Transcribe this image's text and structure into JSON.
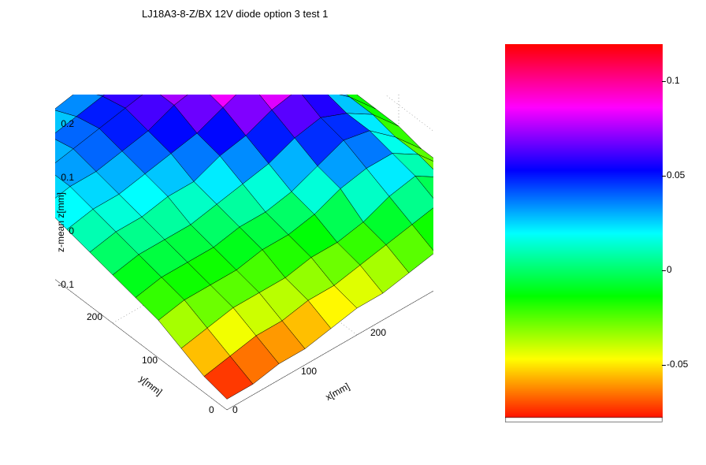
{
  "title": "LJ18A3-8-Z/BX 12V diode option 3 test 1",
  "axes": {
    "x": {
      "label": "x[mm]",
      "min": 0,
      "max": 220,
      "ticks": [
        0,
        100,
        200
      ]
    },
    "y": {
      "label": "y[mm]",
      "min": 0,
      "max": 220,
      "ticks": [
        0,
        100,
        200
      ]
    },
    "z": {
      "label": "z-mean z[mm]",
      "min": -0.1,
      "max": 0.2,
      "ticks": [
        -0.1,
        0,
        0.1,
        0.2
      ]
    }
  },
  "surface": {
    "nx": 12,
    "ny": 12,
    "xstep": 20,
    "ystep": 20,
    "z": [
      [
        -0.08,
        -0.08,
        -0.07,
        -0.07,
        -0.06,
        -0.05,
        -0.05,
        -0.04,
        -0.03,
        -0.02,
        -0.04,
        -0.07
      ],
      [
        -0.07,
        -0.06,
        -0.05,
        -0.05,
        -0.04,
        -0.04,
        -0.03,
        -0.02,
        -0.01,
        0.0,
        -0.02,
        -0.06
      ],
      [
        -0.05,
        -0.04,
        -0.03,
        -0.03,
        -0.03,
        -0.02,
        -0.02,
        -0.01,
        0.01,
        0.02,
        -0.01,
        -0.05
      ],
      [
        -0.03,
        -0.02,
        -0.02,
        -0.02,
        -0.01,
        -0.01,
        0.0,
        0.02,
        0.03,
        0.03,
        0.0,
        -0.05
      ],
      [
        -0.02,
        -0.01,
        -0.01,
        -0.01,
        0.0,
        0.0,
        0.01,
        0.03,
        0.05,
        0.04,
        0.0,
        -0.05
      ],
      [
        -0.01,
        0.0,
        0.0,
        0.0,
        0.01,
        0.02,
        0.03,
        0.05,
        0.06,
        0.04,
        0.01,
        -0.04
      ],
      [
        0.0,
        0.01,
        0.01,
        0.02,
        0.02,
        0.04,
        0.05,
        0.07,
        0.08,
        0.05,
        0.01,
        -0.04
      ],
      [
        0.01,
        0.02,
        0.02,
        0.03,
        0.04,
        0.05,
        0.07,
        0.09,
        0.09,
        0.06,
        0.01,
        -0.04
      ],
      [
        0.02,
        0.03,
        0.03,
        0.04,
        0.05,
        0.07,
        0.08,
        0.1,
        0.09,
        0.05,
        0.0,
        -0.05
      ],
      [
        0.02,
        0.03,
        0.04,
        0.05,
        0.06,
        0.07,
        0.08,
        0.09,
        0.07,
        0.03,
        -0.02,
        -0.06
      ],
      [
        0.01,
        0.02,
        0.03,
        0.04,
        0.05,
        0.06,
        0.06,
        0.06,
        0.04,
        0.0,
        -0.04,
        -0.07
      ],
      [
        0.0,
        0.01,
        0.02,
        0.02,
        0.03,
        0.03,
        0.03,
        0.02,
        0.0,
        -0.03,
        -0.06,
        -0.08
      ]
    ]
  },
  "colormap": {
    "type": "hsv",
    "min": -0.08,
    "max": 0.12,
    "ticks": [
      {
        "v": 0.1,
        "label": "0.1"
      },
      {
        "v": 0.05,
        "label": "0.05"
      },
      {
        "v": 0.0,
        "label": "0"
      },
      {
        "v": -0.05,
        "label": "-0.05"
      }
    ]
  },
  "style": {
    "background_color": "#ffffff",
    "grid_color": "#000000",
    "edge_color": "#000000",
    "title_fontsize": 13,
    "tick_fontsize": 12
  },
  "view": {
    "azimuth_deg": -37.5,
    "elevation_deg": 30
  }
}
